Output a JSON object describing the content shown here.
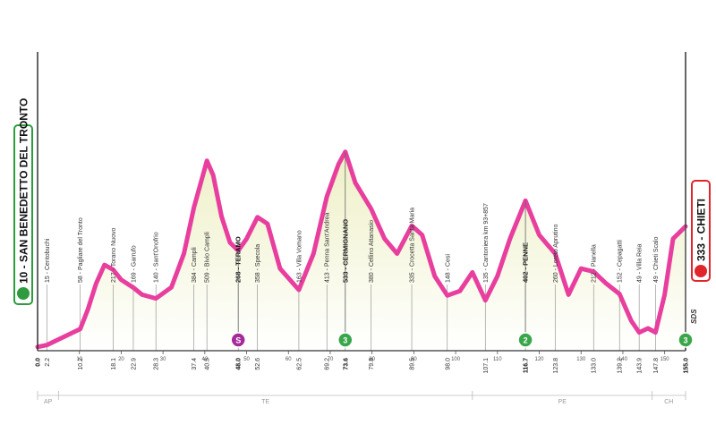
{
  "colors": {
    "profile_line": "#e83e9e",
    "fill_top": "#eef0c6",
    "fill_bottom": "#ffffff",
    "start_box": "#2e9b3e",
    "finish_box": "#e0252b",
    "sprint": "#3aa64a",
    "climb": "#a52a9a"
  },
  "stage": {
    "start_label": "10 - SAN BENEDETTO DEL TRONTO",
    "finish_label": "333 - CHIETI",
    "sds_label": "SDS"
  },
  "chart_data": {
    "type": "area",
    "title": "",
    "xlabel": "",
    "ylabel": "",
    "xlim": [
      0,
      155
    ],
    "ylim": [
      0,
      700
    ],
    "grid": false,
    "x_ticks": [
      "0",
      "10",
      "20",
      "30",
      "40",
      "50",
      "60",
      "70",
      "80",
      "90",
      "100",
      "110",
      "120",
      "130",
      "140",
      "150"
    ],
    "profile": {
      "x": [
        0,
        2.2,
        10.2,
        12,
        14,
        16,
        18.1,
        20,
        22.9,
        25,
        28.3,
        32,
        35,
        37.4,
        40.5,
        42,
        44,
        46,
        48.0,
        50,
        52.6,
        55,
        58,
        62.5,
        66,
        69.2,
        72,
        73.6,
        76,
        79.8,
        83,
        86,
        89.5,
        92,
        95,
        98.0,
        101,
        104,
        107.1,
        110,
        113,
        116.7,
        120,
        123.8,
        127,
        130,
        133.0,
        136,
        139.2,
        142,
        143.9,
        146,
        147.8,
        150,
        152,
        155.0
      ],
      "y": [
        10,
        15,
        58,
        110,
        180,
        230,
        217,
        190,
        169,
        150,
        140,
        170,
        260,
        384,
        509,
        470,
        360,
        290,
        268,
        300,
        358,
        340,
        220,
        163,
        260,
        413,
        500,
        533,
        450,
        380,
        300,
        260,
        335,
        310,
        200,
        148,
        160,
        210,
        135,
        200,
        300,
        402,
        310,
        260,
        150,
        220,
        212,
        180,
        152,
        80,
        49,
        60,
        49,
        150,
        300,
        333
      ]
    },
    "localities": [
      {
        "km": "2.2",
        "name": "15 - Centobuchi",
        "x": 2.2,
        "bold": false
      },
      {
        "km": "10.2",
        "name": "58 - Pagliare del Tronto",
        "x": 10.2,
        "bold": false
      },
      {
        "km": "18.1",
        "name": "217 - Torano Nuovo",
        "x": 18.1,
        "bold": false
      },
      {
        "km": "22.9",
        "name": "169 - Garrufo",
        "x": 22.9,
        "bold": false
      },
      {
        "km": "28.3",
        "name": "140 - Sant'Onofrio",
        "x": 28.3,
        "bold": false
      },
      {
        "km": "37.4",
        "name": "384 - Campli",
        "x": 37.4,
        "bold": false
      },
      {
        "km": "40.5",
        "name": "509 - Bivio Campli",
        "x": 40.5,
        "bold": false
      },
      {
        "km": "48.0",
        "name": "268 - TERAMO",
        "x": 48.0,
        "bold": true
      },
      {
        "km": "52.6",
        "name": "358 - Specola",
        "x": 52.6,
        "bold": false
      },
      {
        "km": "62.5",
        "name": "163 - Villa Vomano",
        "x": 62.5,
        "bold": false
      },
      {
        "km": "69.2",
        "name": "413 - Penna Sant'Andrea",
        "x": 69.2,
        "bold": false
      },
      {
        "km": "73.6",
        "name": "533 - CERMIGNANO",
        "x": 73.6,
        "bold": true
      },
      {
        "km": "79.8",
        "name": "380 - Cellino Attanasio",
        "x": 79.8,
        "bold": false
      },
      {
        "km": "89.5",
        "name": "335 - Crocetta Santa Maria",
        "x": 89.5,
        "bold": false
      },
      {
        "km": "98.0",
        "name": "148 - Cesi",
        "x": 98.0,
        "bold": false
      },
      {
        "km": "107.1",
        "name": "135 - Cantoniera km 93+857",
        "x": 107.1,
        "bold": false
      },
      {
        "km": "116.7",
        "name": "402 - PENNE",
        "x": 116.7,
        "bold": true
      },
      {
        "km": "123.8",
        "name": "260 - Loreto Aprutino",
        "x": 123.8,
        "bold": false
      },
      {
        "km": "133.0",
        "name": "212 - Pianella",
        "x": 133.0,
        "bold": false
      },
      {
        "km": "139.2",
        "name": "152 - Cepagatti",
        "x": 139.2,
        "bold": false
      },
      {
        "km": "143.9",
        "name": "49 - Villa Reia",
        "x": 143.9,
        "bold": false
      },
      {
        "km": "147.8",
        "name": "49 - Chieti Scalo",
        "x": 147.8,
        "bold": false
      }
    ],
    "end_km": [
      {
        "km": "0.0",
        "x": 0,
        "bold": true
      },
      {
        "km": "155.0",
        "x": 155.0,
        "bold": true
      }
    ],
    "markers": [
      {
        "x": 48.0,
        "label": "S",
        "kind": "climb"
      },
      {
        "x": 73.6,
        "label": "3",
        "kind": "sprint"
      },
      {
        "x": 116.7,
        "label": "2",
        "kind": "sprint"
      },
      {
        "x": 155.0,
        "label": "3",
        "kind": "sprint"
      }
    ],
    "regions": [
      {
        "name": "AP",
        "from": 0,
        "to": 5
      },
      {
        "name": "TE",
        "from": 5,
        "to": 104
      },
      {
        "name": "PE",
        "from": 104,
        "to": 147
      },
      {
        "name": "CH",
        "from": 147,
        "to": 155
      }
    ]
  }
}
